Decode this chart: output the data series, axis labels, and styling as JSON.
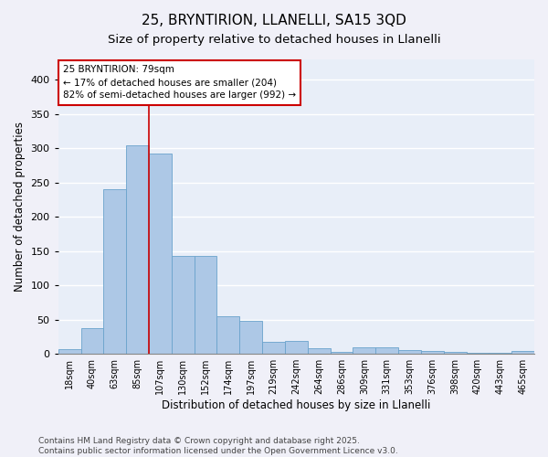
{
  "title_line1": "25, BRYNTIRION, LLANELLI, SA15 3QD",
  "title_line2": "Size of property relative to detached houses in Llanelli",
  "xlabel": "Distribution of detached houses by size in Llanelli",
  "ylabel": "Number of detached properties",
  "categories": [
    "18sqm",
    "40sqm",
    "63sqm",
    "85sqm",
    "107sqm",
    "130sqm",
    "152sqm",
    "174sqm",
    "197sqm",
    "219sqm",
    "242sqm",
    "264sqm",
    "286sqm",
    "309sqm",
    "331sqm",
    "353sqm",
    "376sqm",
    "398sqm",
    "420sqm",
    "443sqm",
    "465sqm"
  ],
  "values": [
    7,
    38,
    240,
    305,
    293,
    143,
    143,
    55,
    48,
    17,
    19,
    8,
    3,
    10,
    10,
    5,
    4,
    3,
    1,
    2,
    4
  ],
  "bar_color": "#adc8e6",
  "bar_edge_color": "#6aa3cc",
  "property_line_x": 3.5,
  "property_label": "25 BRYNTIRION: 79sqm",
  "annotation_line1": "← 17% of detached houses are smaller (204)",
  "annotation_line2": "82% of semi-detached houses are larger (992) →",
  "annotation_box_color": "#ffffff",
  "annotation_box_edge": "#cc0000",
  "property_line_color": "#cc0000",
  "ylim": [
    0,
    430
  ],
  "yticks": [
    0,
    50,
    100,
    150,
    200,
    250,
    300,
    350,
    400
  ],
  "background_color": "#e8eef8",
  "grid_color": "#ffffff",
  "footer_line1": "Contains HM Land Registry data © Crown copyright and database right 2025.",
  "footer_line2": "Contains public sector information licensed under the Open Government Licence v3.0.",
  "title_fontsize": 11,
  "subtitle_fontsize": 9.5,
  "axis_label_fontsize": 8.5,
  "tick_fontsize": 7,
  "annotation_fontsize": 7.5,
  "footer_fontsize": 6.5
}
